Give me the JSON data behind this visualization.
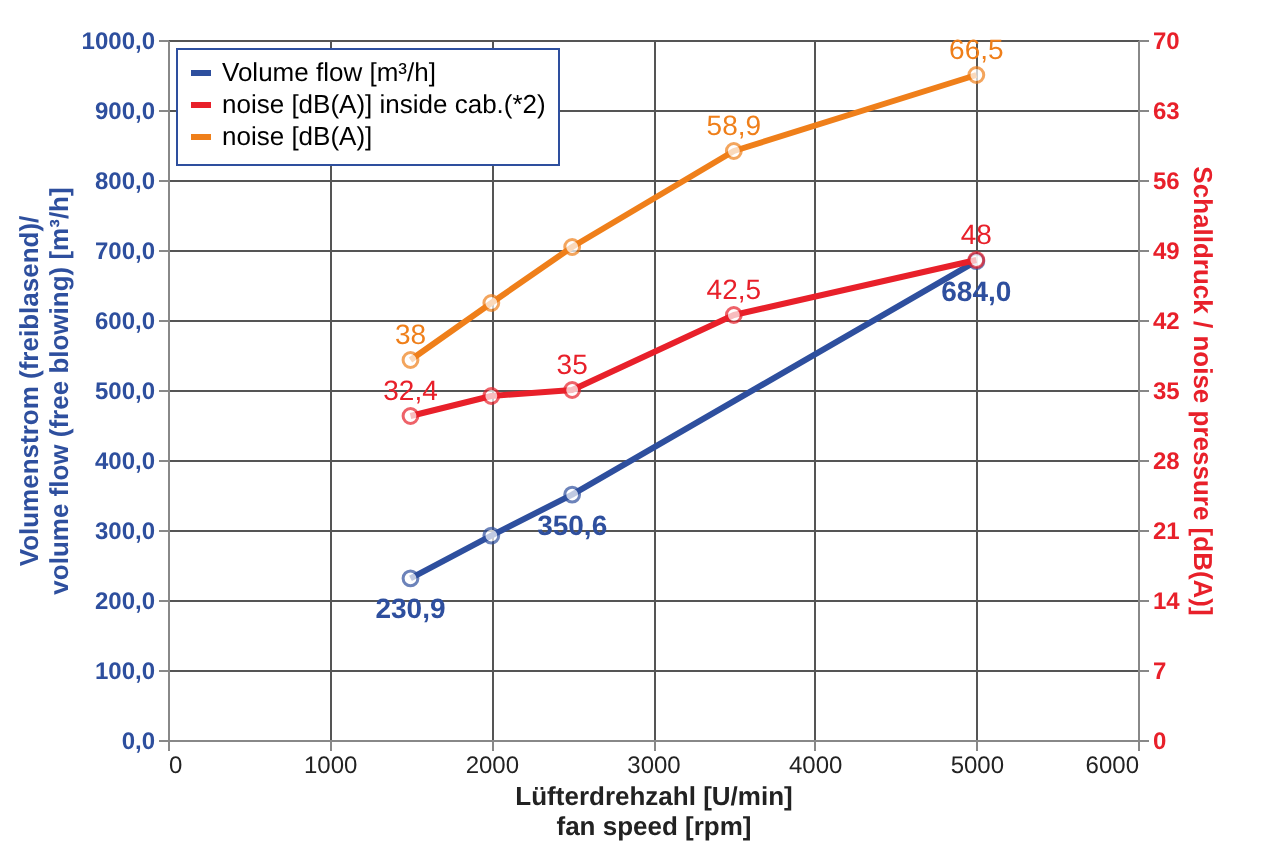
{
  "chart_data": {
    "type": "line",
    "xlabel": "Lüfterdrehzahl  [U/min]\nfan speed [rpm]",
    "ylabel": "Volumenstrom (freiblasend)/\nvolume flow (free blowing) [m³/h]",
    "y2label": "Schalldruck / noise pressure [dB(A)]",
    "x": [
      1500,
      2000,
      2500,
      3500,
      5000
    ],
    "series": [
      {
        "name": "Volume flow [m³/h]",
        "color": "#2e4f9e",
        "x": [
          1500,
          2000,
          2500,
          5000
        ],
        "values": [
          230.9,
          292,
          350.6,
          684.0
        ],
        "value_labels": [
          "230,9",
          null,
          "350,6",
          "684,0"
        ]
      },
      {
        "name": "noise [dB(A)] inside cab.(*2)",
        "color": "#e8202a",
        "axis": "y2",
        "values": [
          32.4,
          34.4,
          35,
          42.5,
          48
        ],
        "value_labels": [
          "32,4",
          null,
          "35",
          "42,5",
          "48"
        ]
      },
      {
        "name": "noise [dB(A)]",
        "color": "#ef7f1a",
        "axis": "y2",
        "values": [
          38,
          43.7,
          49.3,
          58.9,
          66.5
        ],
        "value_labels": [
          "38",
          null,
          null,
          "58,9",
          "66,5"
        ]
      }
    ],
    "xlim": [
      0,
      6000
    ],
    "xticks": [
      0,
      1000,
      2000,
      3000,
      4000,
      5000,
      6000
    ],
    "ylim": [
      0,
      1000
    ],
    "yticks": [
      {
        "value": 0,
        "label": "0,0"
      },
      {
        "value": 100,
        "label": "100,0"
      },
      {
        "value": 200,
        "label": "200,0"
      },
      {
        "value": 300,
        "label": "300,0"
      },
      {
        "value": 400,
        "label": "400,0"
      },
      {
        "value": 500,
        "label": "500,0"
      },
      {
        "value": 600,
        "label": "600,0"
      },
      {
        "value": 700,
        "label": "700,0"
      },
      {
        "value": 800,
        "label": "800,0"
      },
      {
        "value": 900,
        "label": "900,0"
      },
      {
        "value": 1000,
        "label": "1000,0"
      }
    ],
    "y2lim": [
      0,
      70
    ],
    "y2ticks": [
      0,
      7,
      14,
      21,
      28,
      35,
      42,
      49,
      56,
      63,
      70
    ],
    "grid": true,
    "legend": "top left",
    "marker": "circle",
    "line_style": "solid"
  }
}
